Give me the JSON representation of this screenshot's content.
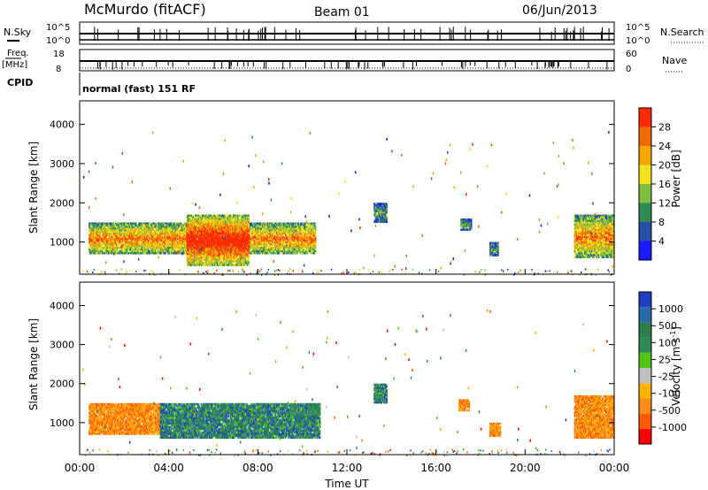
{
  "header": {
    "station": "McMurdo (fitACF)",
    "beam": "Beam 01",
    "date": "06/Jun/2013"
  },
  "sky_panel": {
    "left_label": "N.Sky",
    "right_label": "N.Search",
    "tick_top": "10^5",
    "tick_bottom": "10^0"
  },
  "freq_panel": {
    "left_label_1": "Freq.",
    "left_label_2": "[MHz]",
    "right_label": "Nave",
    "left_ticks": [
      "18",
      "8"
    ],
    "right_ticks": [
      "60",
      "0"
    ]
  },
  "cpid_panel": {
    "label": "CPID",
    "text": "normal (fast) 151 RF"
  },
  "colors": {
    "power": [
      "#1a1aff",
      "#274fa8",
      "#2e8b57",
      "#7fbf3f",
      "#f2e21a",
      "#f7a800",
      "#f06a00",
      "#ff2a00"
    ],
    "velocity": [
      "#ff0000",
      "#ff5a00",
      "#ff8c1a",
      "#ffb300",
      "#c0c0c0",
      "#52c41a",
      "#2e8b57",
      "#2d7d4f",
      "#2a6aa8",
      "#1f3fbf"
    ]
  },
  "chart_data": [
    {
      "type": "heatmap",
      "ylabel": "Slant Range [km]",
      "yticks": [
        1000,
        2000,
        3000,
        4000
      ],
      "ylim": [
        180,
        4600
      ],
      "xlim": [
        0,
        24
      ],
      "colorbar_label": "Power [dB]",
      "colorbar_ticks": [
        "4",
        "8",
        "12",
        "16",
        "20",
        "24",
        "28"
      ],
      "echo_regions": [
        {
          "t0": 0.4,
          "t1": 10.6,
          "r0": 700,
          "r1": 1500,
          "level": "high"
        },
        {
          "t0": 4.8,
          "t1": 7.6,
          "r0": 400,
          "r1": 1700,
          "level": "peak"
        },
        {
          "t0": 13.2,
          "t1": 13.8,
          "r0": 1500,
          "r1": 2000,
          "level": "low"
        },
        {
          "t0": 17.1,
          "t1": 17.6,
          "r0": 1300,
          "r1": 1600,
          "level": "low"
        },
        {
          "t0": 18.4,
          "t1": 18.8,
          "r0": 650,
          "r1": 1000,
          "level": "low"
        },
        {
          "t0": 22.2,
          "t1": 24.0,
          "r0": 600,
          "r1": 1700,
          "level": "high"
        }
      ]
    },
    {
      "type": "heatmap",
      "xlabel": "Time UT",
      "ylabel": "Slant Range [km]",
      "xticks": [
        "00:00",
        "04:00",
        "08:00",
        "12:00",
        "16:00",
        "20:00",
        "00:00"
      ],
      "yticks": [
        1000,
        2000,
        3000,
        4000
      ],
      "ylim": [
        180,
        4600
      ],
      "xlim": [
        0,
        24
      ],
      "colorbar_label": "Velocity [m s^-1]",
      "colorbar_ticks": [
        "-1000",
        "-500",
        "-100",
        "-25",
        "25",
        "100",
        "500",
        "1000"
      ],
      "echo_regions": [
        {
          "t0": 0.4,
          "t1": 3.6,
          "r0": 700,
          "r1": 1500,
          "level": "negative"
        },
        {
          "t0": 3.6,
          "t1": 10.8,
          "r0": 600,
          "r1": 1500,
          "level": "positive"
        },
        {
          "t0": 13.2,
          "t1": 13.8,
          "r0": 1500,
          "r1": 2000,
          "level": "positive"
        },
        {
          "t0": 17.0,
          "t1": 17.5,
          "r0": 1300,
          "r1": 1600,
          "level": "negative"
        },
        {
          "t0": 18.4,
          "t1": 18.9,
          "r0": 650,
          "r1": 1000,
          "level": "negative"
        },
        {
          "t0": 22.2,
          "t1": 24.0,
          "r0": 600,
          "r1": 1700,
          "level": "negative"
        }
      ]
    }
  ]
}
